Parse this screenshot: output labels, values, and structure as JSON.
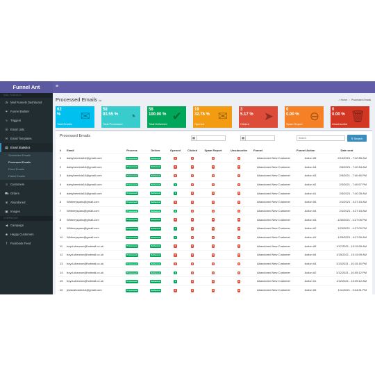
{
  "app": {
    "brand": "Funnel Ant"
  },
  "sidebar": {
    "section_main": "MAIL FUNNELS",
    "section_other": "CAMPAIGNS",
    "items": [
      {
        "label": "Mail Funnels Dashboard",
        "icon": "dashboard-icon"
      },
      {
        "label": "Funnel Builder",
        "icon": "funnel-icon"
      },
      {
        "label": "Triggers",
        "icon": "bolt-icon"
      },
      {
        "label": "Email Lists",
        "icon": "list-icon"
      },
      {
        "label": "Email Templates",
        "icon": "envelope-icon"
      },
      {
        "label": "Email Statistics",
        "icon": "chart-icon"
      }
    ],
    "sub_items": [
      "Scheduled Emails",
      "Processed Emails",
      "Fixed Emails",
      "Failed Emails"
    ],
    "items2": [
      {
        "label": "Customers",
        "icon": "users-icon"
      },
      {
        "label": "Orders",
        "icon": "cart-icon"
      },
      {
        "label": "Abandoned",
        "icon": "cart-x-icon"
      },
      {
        "label": "Images",
        "icon": "image-icon"
      }
    ],
    "items3": [
      {
        "label": "Campaign",
        "icon": "megaphone-icon"
      },
      {
        "label": "Happy Customers",
        "icon": "smile-icon"
      },
      {
        "label": "Facebook Feed",
        "icon": "facebook-icon"
      }
    ]
  },
  "header": {
    "menu_icon": "≡"
  },
  "page": {
    "title": "Processed Emails",
    "subtitle": "list",
    "breadcrumb_home": "Home",
    "breadcrumb_current": "Processed Emails"
  },
  "stats": [
    {
      "value": "62",
      "pct": "%",
      "label": "Total Emails",
      "color": "#00c0ef",
      "icon": "✉"
    },
    {
      "value": "58",
      "pct": "93.55 %",
      "label": "Total Processed",
      "color": "#39cccc",
      "icon": "◔"
    },
    {
      "value": "58",
      "pct": "100.00 %",
      "label": "Total Delivered",
      "color": "#00a65a",
      "icon": "✔"
    },
    {
      "value": "19",
      "pct": "32.76 %",
      "label": "Opened",
      "color": "#f39c12",
      "icon": "✉"
    },
    {
      "value": "3",
      "pct": "5.17 %",
      "label": "Clicked",
      "color": "#dd4b39",
      "icon": "➤"
    },
    {
      "value": "0",
      "pct": "0.00 %",
      "label": "Spam Report",
      "color": "#f58025",
      "icon": "⊖"
    },
    {
      "value": "0",
      "pct": "0.00 %",
      "label": "Unsubscribe",
      "color": "#d33724",
      "icon": "🗑"
    }
  ],
  "panel": {
    "title": "Processed Emails",
    "search_placeholder": "Search",
    "search_button": "Search",
    "calendar_icon": "▦"
  },
  "table": {
    "headers": [
      "#",
      "Email",
      "Process",
      "Deliver",
      "Opened",
      "Clicked",
      "Spam Report",
      "Unsubscribe",
      "Funnel",
      "Funnel Action",
      "Date sent"
    ],
    "rows": [
      [
        "1",
        "daisyhermida14@gmail.com",
        "Processed",
        "Delivered",
        "0",
        "0",
        "0",
        "0",
        "Abandoned New Customer",
        "Action #5",
        "2/10/2021 - 7:40:55 AM"
      ],
      [
        "2",
        "daisyhermida14@gmail.com",
        "Processed",
        "Delivered",
        "0",
        "0",
        "0",
        "0",
        "Abandoned New Customer",
        "Action #4",
        "2/9/2021 - 7:40:54 AM"
      ],
      [
        "3",
        "daisyhermida14@gmail.com",
        "Processed",
        "Delivered",
        "0",
        "0",
        "0",
        "0",
        "Abandoned New Customer",
        "Action #3",
        "2/5/2021 - 7:40:46 PM"
      ],
      [
        "4",
        "daisyhermida14@gmail.com",
        "Processed",
        "Delivered",
        "1",
        "0",
        "0",
        "0",
        "Abandoned New Customer",
        "Action #2",
        "2/3/2021 - 7:40:57 PM"
      ],
      [
        "5",
        "daisyhermida14@gmail.com",
        "Processed",
        "Delivered",
        "1",
        "0",
        "0",
        "0",
        "Abandoned New Customer",
        "Action #1",
        "2/3/2021 - 7:40:35 AM"
      ],
      [
        "6",
        "Whitneyspara@gmail.com",
        "Processed",
        "Delivered",
        "0",
        "0",
        "0",
        "0",
        "Abandoned New Customer",
        "Action #5",
        "2/1/2021 - 4:27:15 AM"
      ],
      [
        "7",
        "Whitneyspara@gmail.com",
        "Processed",
        "Delivered",
        "2",
        "0",
        "0",
        "0",
        "Abandoned New Customer",
        "Action #4",
        "2/1/2021 - 4:27:15 AM"
      ],
      [
        "8",
        "Whitneyspara@gmail.com",
        "Processed",
        "Delivered",
        "0",
        "0",
        "0",
        "0",
        "Abandoned New Customer",
        "Action #3",
        "1/30/2021 - 4:27:05 PM"
      ],
      [
        "9",
        "Whitneyspara@gmail.com",
        "Processed",
        "Delivered",
        "1",
        "0",
        "0",
        "0",
        "Abandoned New Customer",
        "Action #2",
        "1/29/2021 - 4:27:00 PM"
      ],
      [
        "10",
        "Whitneyspara@gmail.com",
        "Processed",
        "Delivered",
        "1",
        "0",
        "0",
        "0",
        "Abandoned New Customer",
        "Action #1",
        "1/29/2021 - 4:27:00 AM"
      ],
      [
        "11",
        "boyd-shannon@hotmail.co.uk",
        "Processed",
        "Delivered",
        "0",
        "0",
        "0",
        "0",
        "Abandoned New Customer",
        "Action #5",
        "1/17/2021 - 10:15:09 AM"
      ],
      [
        "12",
        "boyd-shannon@hotmail.co.uk",
        "Processed",
        "Delivered",
        "0",
        "0",
        "0",
        "0",
        "Abandoned New Customer",
        "Action #4",
        "1/15/2021 - 10:15:09 AM"
      ],
      [
        "13",
        "boyd-shannon@hotmail.co.uk",
        "Processed",
        "Delivered",
        "0",
        "0",
        "0",
        "0",
        "Abandoned New Customer",
        "Action #3",
        "1/13/2021 - 10:15:16 PM"
      ],
      [
        "14",
        "boyd-shannon@hotmail.co.uk",
        "Processed",
        "Delivered",
        "1",
        "0",
        "0",
        "0",
        "Abandoned New Customer",
        "Action #2",
        "1/12/2021 - 10:05:12 PM"
      ],
      [
        "15",
        "boyd-shannon@hotmail.co.uk",
        "Processed",
        "Delivered",
        "1",
        "0",
        "0",
        "0",
        "Abandoned New Customer",
        "Action #1",
        "1/12/2021 - 10:05:12 AM"
      ],
      [
        "16",
        "jessicahoskin14@gmail.com",
        "Processed",
        "Delivered",
        "0",
        "0",
        "0",
        "0",
        "Abandoned New Customer",
        "Action #5",
        "1/11/2021 - 3:44:31 PM"
      ]
    ]
  }
}
